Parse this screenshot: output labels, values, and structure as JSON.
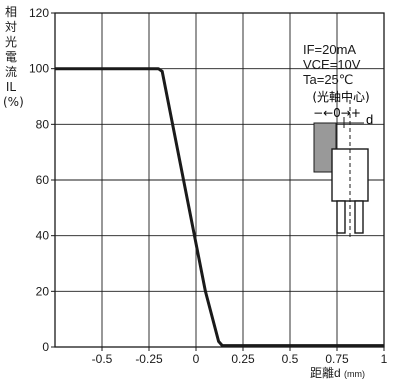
{
  "chart_data": {
    "type": "line",
    "ylabel_chars": [
      "相",
      "対",
      "光",
      "電",
      "流",
      "IL",
      "(%)"
    ],
    "xlabel": "距離d",
    "xlabel_unit": "(mm)",
    "xlim": [
      -0.75,
      1.0
    ],
    "ylim": [
      0,
      120
    ],
    "x_ticks": [
      -0.5,
      -0.25,
      0,
      0.25,
      0.5,
      0.75,
      1
    ],
    "x_tick_labels": [
      "-0.5",
      "-0.25",
      "0",
      "0.25",
      "0.5",
      "0.75",
      "1"
    ],
    "y_ticks": [
      0,
      20,
      40,
      60,
      80,
      100,
      120
    ],
    "y_tick_labels": [
      "0",
      "20",
      "40",
      "60",
      "80",
      "100",
      "120"
    ],
    "grid": true,
    "series": [
      {
        "x": [
          -0.75,
          -0.2,
          -0.18,
          0.05,
          0.12,
          0.14,
          0.5,
          1.0
        ],
        "y": [
          100,
          100,
          99,
          20,
          2,
          0.5,
          0.5,
          0.5
        ]
      }
    ],
    "conditions": [
      "IF=20mA",
      "VCE=10V",
      "Ta=25℃"
    ],
    "diagram": {
      "center_label": "(光軸中心)",
      "arrow_label": "−←0→+",
      "d_label": "d"
    },
    "colors": {
      "line": "#1a1a1a",
      "grid": "#1a1a1a",
      "emitter": "#999999"
    }
  }
}
